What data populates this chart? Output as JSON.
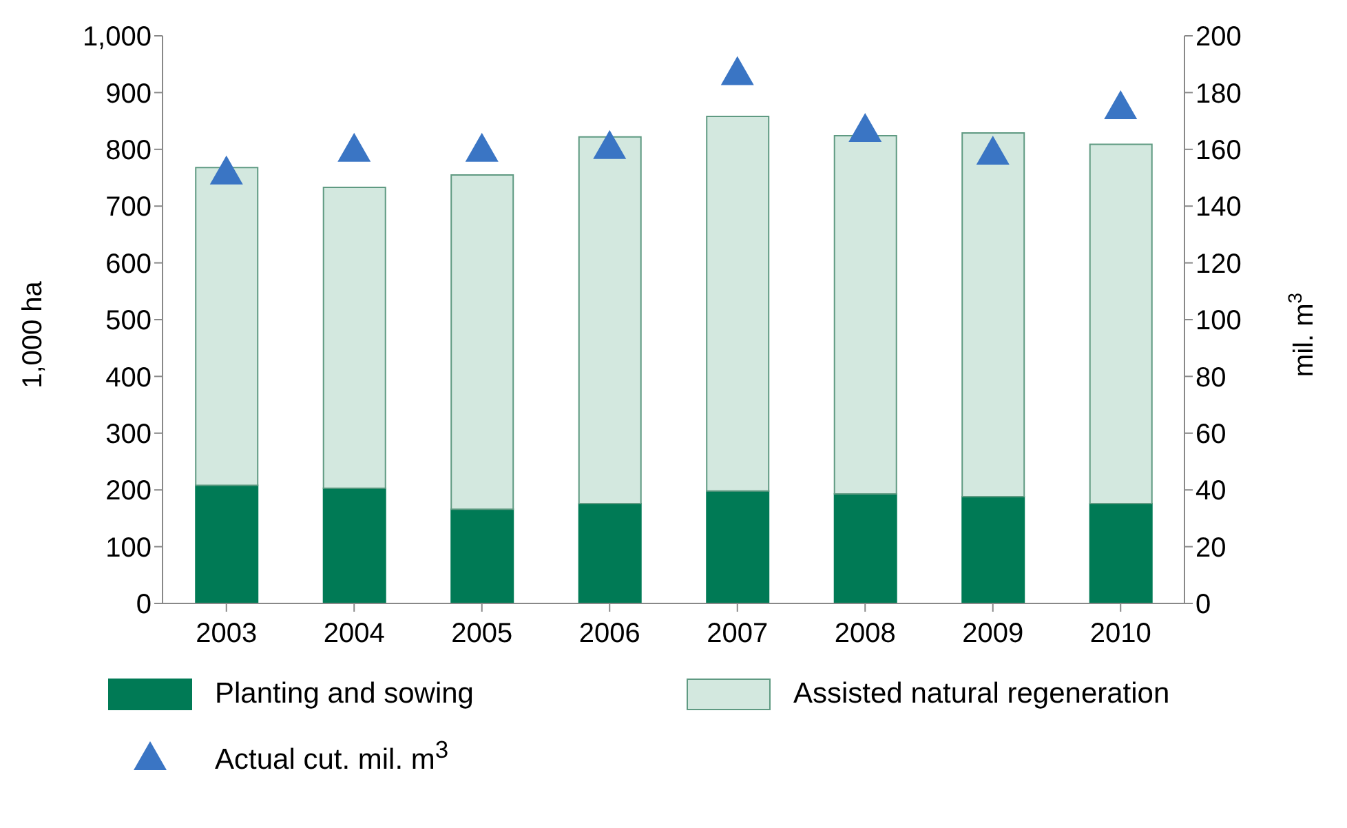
{
  "chart_data": {
    "type": "bar",
    "stacked": true,
    "categories": [
      "2003",
      "2004",
      "2005",
      "2006",
      "2007",
      "2008",
      "2009",
      "2010"
    ],
    "ylabel": "1,000 ha",
    "y2label": "mil. m$^{3}$",
    "ylim": [
      0,
      1000
    ],
    "yticks": [
      0,
      100,
      200,
      300,
      400,
      500,
      600,
      700,
      800,
      900,
      {
        "value": 1000,
        "label": "1,000"
      }
    ],
    "y2lim": [
      0,
      200
    ],
    "y2ticks": [
      0,
      20,
      40,
      60,
      80,
      100,
      120,
      140,
      160,
      180,
      200
    ],
    "legend": "bottom",
    "grid": false,
    "series": [
      {
        "name": "Planting and sowing",
        "color": "#007a55",
        "values": [
          208,
          203,
          166,
          176,
          198,
          193,
          188,
          176
        ]
      },
      {
        "name": "Assisted natural regeneration",
        "color": "#d3e8df",
        "values": [
          560,
          530,
          589,
          646,
          660,
          631,
          641,
          633
        ]
      },
      {
        "name": "Actual cut. mil. m$^{3}$",
        "type": "scatter",
        "marker": "triangle",
        "axis": "y2",
        "color": "#3a75c4",
        "values": [
          152,
          160,
          160,
          161,
          187,
          167,
          159,
          175
        ]
      }
    ]
  }
}
